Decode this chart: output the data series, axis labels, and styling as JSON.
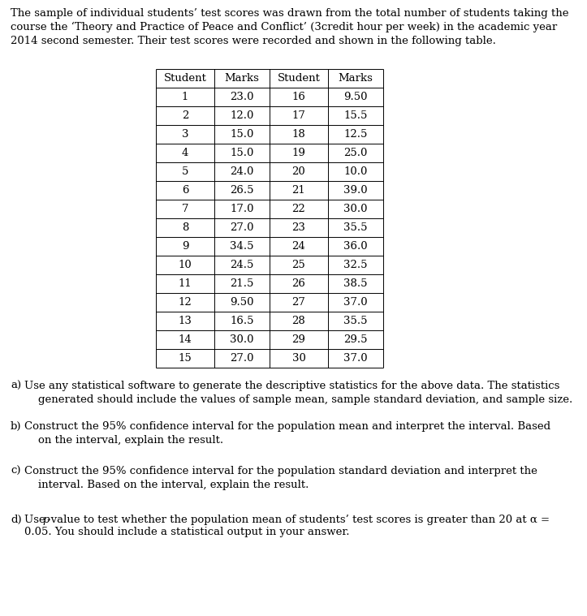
{
  "intro_text": "The sample of individual students’ test scores was drawn from the total number of students taking the\ncourse the ‘Theory and Practice of Peace and Conflict’ (3credit hour per week) in the academic year\n2014 second semester. Their test scores were recorded and shown in the following table.",
  "col_headers": [
    "Student",
    "Marks",
    "Student",
    "Marks"
  ],
  "students_left": [
    1,
    2,
    3,
    4,
    5,
    6,
    7,
    8,
    9,
    10,
    11,
    12,
    13,
    14,
    15
  ],
  "marks_left": [
    "23.0",
    "12.0",
    "15.0",
    "15.0",
    "24.0",
    "26.5",
    "17.0",
    "27.0",
    "34.5",
    "24.5",
    "21.5",
    "9.50",
    "16.5",
    "30.0",
    "27.0"
  ],
  "students_right": [
    16,
    17,
    18,
    19,
    20,
    21,
    22,
    23,
    24,
    25,
    26,
    27,
    28,
    29,
    30
  ],
  "marks_right": [
    "9.50",
    "15.5",
    "12.5",
    "25.0",
    "10.0",
    "39.0",
    "30.0",
    "35.5",
    "36.0",
    "32.5",
    "38.5",
    "37.0",
    "35.5",
    "29.5",
    "37.0"
  ],
  "qa_label": "a)",
  "qa_text": " Use any statistical software to generate the descriptive statistics for the above data. The statistics\n    generated should include the values of sample mean, sample standard deviation, and sample size.",
  "qb_label": "b)",
  "qb_text": " Construct the 95% confidence interval for the population mean and interpret the interval. Based\n    on the interval, explain the result.",
  "qc_label": "c)",
  "qc_text": " Construct the 95% confidence interval for the population standard deviation and interpret the\n    interval. Based on the interval, explain the result.",
  "qd_label": "d)",
  "qd_text": " Use p-value to test whether the population mean of students’ test scores is greater than 20 at α =\n    0.05. You should include a statistical output in your answer.",
  "bg_color": "#ffffff",
  "text_color": "#000000",
  "font_size_body": 9.5,
  "font_size_table": 9.5
}
